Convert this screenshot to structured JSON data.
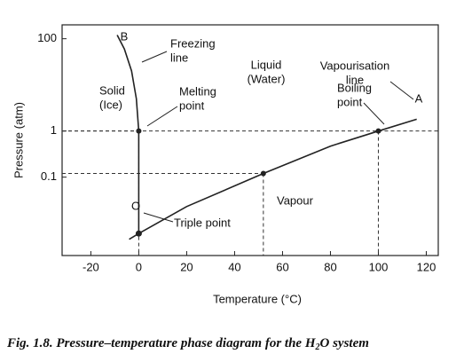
{
  "chart_data": {
    "type": "line",
    "x_label": "Temperature (°C)",
    "y_label": "Pressure (atm)",
    "xlim": [
      -32,
      125
    ],
    "xticks": [
      -20,
      0,
      20,
      40,
      60,
      80,
      100,
      120
    ],
    "ylim": [
      0.002,
      200
    ],
    "yticks": [
      0.1,
      1,
      100
    ],
    "log_y": true,
    "series": [
      {
        "color": "#222",
        "x": [
          0,
          0,
          -1,
          -3,
          -6,
          -9
        ],
        "y": [
          0.006,
          1,
          5,
          20,
          60,
          120
        ]
      },
      {
        "color": "#222",
        "x": [
          0,
          20,
          52,
          80,
          100,
          116
        ],
        "y": [
          0.006,
          0.023,
          0.12,
          0.47,
          1,
          1.8
        ]
      },
      {
        "color": "#222",
        "x": [
          -4,
          0
        ],
        "y": [
          0.0045,
          0.006
        ]
      }
    ],
    "reference_points": {
      "x": [
        0,
        52,
        100
      ],
      "y": [
        1,
        0.12,
        1
      ]
    },
    "annotations": {
      "b": "B",
      "a": "A",
      "o": "O",
      "freezing": [
        "Freezing",
        "line"
      ],
      "vapourisation": [
        "Vapourisation",
        "line"
      ],
      "solid": [
        "Solid",
        "(Ice)"
      ],
      "liquid": [
        "Liquid",
        "(Water)"
      ],
      "vapour": "Vapour",
      "melting": [
        "Melting",
        "point"
      ],
      "boiling": [
        "Boiling",
        "point"
      ],
      "triple": "Triple point"
    },
    "caption": [
      "Fig. 1.8. Pressure–temperature phase diagram for the H",
      "2",
      "O system"
    ]
  }
}
